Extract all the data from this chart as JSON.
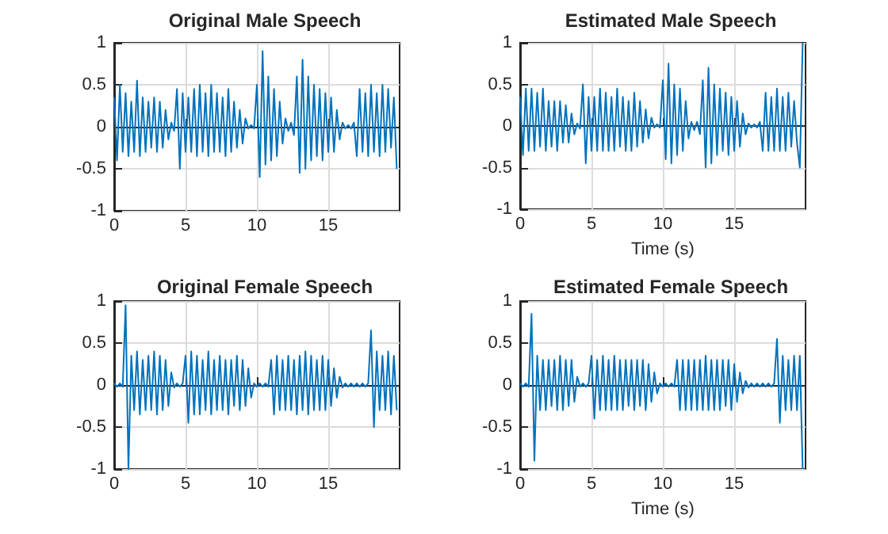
{
  "chart_data": [
    {
      "type": "line",
      "title": "Original Male Speech",
      "color": "#0072bd",
      "xlim": [
        0,
        20
      ],
      "ylim": [
        -1,
        1
      ],
      "xticks": [
        0,
        5,
        10,
        15
      ],
      "yticks": [
        -1,
        -0.5,
        0,
        0.5,
        1
      ],
      "grid": true,
      "x": [
        0,
        0.2,
        0.4,
        0.6,
        0.8,
        1,
        1.2,
        1.4,
        1.6,
        1.8,
        2,
        2.2,
        2.4,
        2.6,
        2.8,
        3,
        3.2,
        3.4,
        3.6,
        3.8,
        4,
        4.2,
        4.4,
        4.6,
        4.8,
        5,
        5.2,
        5.4,
        5.6,
        5.8,
        6,
        6.2,
        6.4,
        6.6,
        6.8,
        7,
        7.2,
        7.4,
        7.6,
        7.8,
        8,
        8.2,
        8.4,
        8.6,
        8.8,
        9,
        9.2,
        9.4,
        9.6,
        9.8,
        10,
        10.2,
        10.4,
        10.6,
        10.8,
        11,
        11.2,
        11.4,
        11.6,
        11.8,
        12,
        12.2,
        12.4,
        12.6,
        12.8,
        13,
        13.2,
        13.4,
        13.6,
        13.8,
        14,
        14.2,
        14.4,
        14.6,
        14.8,
        15,
        15.2,
        15.4,
        15.6,
        15.8,
        16,
        16.2,
        16.4,
        16.6,
        16.8,
        17,
        17.2,
        17.4,
        17.6,
        17.8,
        18,
        18.2,
        18.4,
        18.6,
        18.8,
        19,
        19.2,
        19.4,
        19.6,
        19.8
      ],
      "values": [
        0.35,
        -0.4,
        0.5,
        -0.3,
        0.4,
        -0.35,
        0.3,
        -0.3,
        0.55,
        -0.35,
        0.35,
        -0.3,
        0.3,
        -0.25,
        0.35,
        -0.3,
        0.3,
        -0.25,
        0.2,
        -0.15,
        0.05,
        -0.05,
        0.45,
        -0.5,
        0.4,
        -0.3,
        0.35,
        -0.3,
        0.45,
        -0.35,
        0.5,
        -0.3,
        0.4,
        -0.35,
        0.5,
        -0.3,
        0.4,
        -0.3,
        0.35,
        -0.35,
        0.45,
        -0.3,
        0.3,
        -0.25,
        0.2,
        -0.2,
        0.1,
        -0.02,
        0.02,
        -0.02,
        0.5,
        -0.6,
        0.9,
        -0.45,
        0.6,
        -0.4,
        0.45,
        -0.35,
        0.3,
        -0.2,
        0.1,
        -0.05,
        0.05,
        -0.1,
        0.6,
        -0.55,
        0.8,
        -0.5,
        0.6,
        -0.4,
        0.5,
        -0.35,
        0.45,
        -0.4,
        0.4,
        -0.3,
        0.35,
        -0.3,
        0.2,
        -0.15,
        0.05,
        -0.02,
        0.02,
        -0.02,
        0.05,
        -0.35,
        0.45,
        -0.3,
        0.4,
        -0.35,
        0.5,
        -0.3,
        0.4,
        -0.35,
        0.5,
        -0.3,
        0.45,
        -0.25,
        0.35,
        -0.5
      ]
    },
    {
      "type": "line",
      "title": "Estimated Male Speech",
      "xlabel": "Time (s)",
      "color": "#0072bd",
      "xlim": [
        0,
        20
      ],
      "ylim": [
        -1,
        1
      ],
      "xticks": [
        0,
        5,
        10,
        15
      ],
      "yticks": [
        -1,
        -0.5,
        0,
        0.5,
        1
      ],
      "grid": true,
      "x": [
        0,
        0.2,
        0.4,
        0.6,
        0.8,
        1,
        1.2,
        1.4,
        1.6,
        1.8,
        2,
        2.2,
        2.4,
        2.6,
        2.8,
        3,
        3.2,
        3.4,
        3.6,
        3.8,
        4,
        4.2,
        4.4,
        4.6,
        4.8,
        5,
        5.2,
        5.4,
        5.6,
        5.8,
        6,
        6.2,
        6.4,
        6.6,
        6.8,
        7,
        7.2,
        7.4,
        7.6,
        7.8,
        8,
        8.2,
        8.4,
        8.6,
        8.8,
        9,
        9.2,
        9.4,
        9.6,
        9.8,
        10,
        10.2,
        10.4,
        10.6,
        10.8,
        11,
        11.2,
        11.4,
        11.6,
        11.8,
        12,
        12.2,
        12.4,
        12.6,
        12.8,
        13,
        13.2,
        13.4,
        13.6,
        13.8,
        14,
        14.2,
        14.4,
        14.6,
        14.8,
        15,
        15.2,
        15.4,
        15.6,
        15.8,
        16,
        16.2,
        16.4,
        16.6,
        16.8,
        17,
        17.2,
        17.4,
        17.6,
        17.8,
        18,
        18.2,
        18.4,
        18.6,
        18.8,
        19,
        19.2,
        19.4,
        19.6,
        19.8
      ],
      "values": [
        0.35,
        -0.35,
        0.45,
        -0.3,
        0.45,
        -0.3,
        0.4,
        -0.25,
        0.45,
        -0.3,
        0.3,
        -0.25,
        0.3,
        -0.3,
        0.3,
        -0.2,
        0.25,
        -0.2,
        0.15,
        -0.1,
        0.03,
        -0.03,
        0.5,
        -0.45,
        0.35,
        -0.3,
        0.35,
        -0.3,
        0.45,
        -0.3,
        0.4,
        -0.3,
        0.35,
        -0.3,
        0.45,
        -0.25,
        0.35,
        -0.3,
        0.3,
        -0.3,
        0.4,
        -0.25,
        0.3,
        -0.2,
        0.2,
        -0.15,
        0.1,
        -0.02,
        0.02,
        -0.02,
        0.55,
        -0.4,
        0.75,
        -0.45,
        0.5,
        -0.35,
        0.45,
        -0.3,
        0.3,
        -0.15,
        0.05,
        -0.05,
        0.05,
        -0.1,
        0.55,
        -0.5,
        0.7,
        -0.45,
        0.5,
        -0.35,
        0.45,
        -0.3,
        0.4,
        -0.35,
        0.35,
        -0.3,
        0.3,
        -0.25,
        0.15,
        -0.1,
        0.03,
        -0.02,
        0.02,
        -0.02,
        0.05,
        -0.3,
        0.4,
        -0.3,
        0.35,
        -0.3,
        0.45,
        -0.3,
        0.35,
        -0.3,
        0.4,
        -0.25,
        0.3,
        -0.2,
        -0.5,
        1
      ]
    },
    {
      "type": "line",
      "title": "Original Female Speech",
      "color": "#0072bd",
      "xlim": [
        0,
        20
      ],
      "ylim": [
        -1,
        1
      ],
      "xticks": [
        0,
        5,
        10,
        15
      ],
      "yticks": [
        -1,
        -0.5,
        0,
        0.5,
        1
      ],
      "grid": true,
      "x": [
        0,
        0.2,
        0.4,
        0.6,
        0.8,
        1,
        1.2,
        1.4,
        1.6,
        1.8,
        2,
        2.2,
        2.4,
        2.6,
        2.8,
        3,
        3.2,
        3.4,
        3.6,
        3.8,
        4,
        4.2,
        4.4,
        4.6,
        4.8,
        5,
        5.2,
        5.4,
        5.6,
        5.8,
        6,
        6.2,
        6.4,
        6.6,
        6.8,
        7,
        7.2,
        7.4,
        7.6,
        7.8,
        8,
        8.2,
        8.4,
        8.6,
        8.8,
        9,
        9.2,
        9.4,
        9.6,
        9.8,
        10,
        10.2,
        10.4,
        10.6,
        10.8,
        11,
        11.2,
        11.4,
        11.6,
        11.8,
        12,
        12.2,
        12.4,
        12.6,
        12.8,
        13,
        13.2,
        13.4,
        13.6,
        13.8,
        14,
        14.2,
        14.4,
        14.6,
        14.8,
        15,
        15.2,
        15.4,
        15.6,
        15.8,
        16,
        16.2,
        16.4,
        16.6,
        16.8,
        17,
        17.2,
        17.4,
        17.6,
        17.8,
        18,
        18.2,
        18.4,
        18.6,
        18.8,
        19,
        19.2,
        19.4,
        19.6,
        19.8
      ],
      "values": [
        0.02,
        -0.02,
        0.02,
        -0.02,
        0.95,
        -1,
        0.35,
        -0.3,
        0.4,
        -0.35,
        0.3,
        -0.3,
        0.35,
        -0.3,
        0.4,
        -0.35,
        0.35,
        -0.3,
        0.3,
        -0.25,
        0.15,
        -0.03,
        0.02,
        -0.02,
        0.02,
        0.35,
        -0.45,
        0.4,
        -0.35,
        0.35,
        -0.35,
        0.3,
        -0.3,
        0.4,
        -0.35,
        0.3,
        -0.3,
        0.35,
        -0.3,
        0.3,
        -0.35,
        0.3,
        -0.25,
        0.35,
        -0.3,
        0.3,
        -0.25,
        0.2,
        -0.15,
        0.02,
        -0.02,
        0.02,
        -0.02,
        0.02,
        -0.02,
        0.3,
        -0.35,
        0.35,
        -0.3,
        0.3,
        -0.3,
        0.35,
        -0.3,
        0.3,
        -0.35,
        0.35,
        -0.3,
        0.4,
        -0.35,
        0.35,
        -0.3,
        0.3,
        -0.3,
        0.35,
        -0.3,
        0.3,
        -0.25,
        0.2,
        -0.15,
        0.1,
        -0.03,
        0.02,
        -0.02,
        0.02,
        -0.02,
        0.02,
        -0.02,
        0.02,
        -0.02,
        0.02,
        0.65,
        -0.5,
        0.4,
        -0.3,
        0.35,
        -0.3,
        0.4,
        -0.35,
        0.35,
        -0.3
      ]
    },
    {
      "type": "line",
      "title": "Estimated Female Speech",
      "xlabel": "Time (s)",
      "color": "#0072bd",
      "xlim": [
        0,
        20
      ],
      "ylim": [
        -1,
        1
      ],
      "xticks": [
        0,
        5,
        10,
        15
      ],
      "yticks": [
        -1,
        -0.5,
        0,
        0.5,
        1
      ],
      "grid": true,
      "x": [
        0,
        0.2,
        0.4,
        0.6,
        0.8,
        1,
        1.2,
        1.4,
        1.6,
        1.8,
        2,
        2.2,
        2.4,
        2.6,
        2.8,
        3,
        3.2,
        3.4,
        3.6,
        3.8,
        4,
        4.2,
        4.4,
        4.6,
        4.8,
        5,
        5.2,
        5.4,
        5.6,
        5.8,
        6,
        6.2,
        6.4,
        6.6,
        6.8,
        7,
        7.2,
        7.4,
        7.6,
        7.8,
        8,
        8.2,
        8.4,
        8.6,
        8.8,
        9,
        9.2,
        9.4,
        9.6,
        9.8,
        10,
        10.2,
        10.4,
        10.6,
        10.8,
        11,
        11.2,
        11.4,
        11.6,
        11.8,
        12,
        12.2,
        12.4,
        12.6,
        12.8,
        13,
        13.2,
        13.4,
        13.6,
        13.8,
        14,
        14.2,
        14.4,
        14.6,
        14.8,
        15,
        15.2,
        15.4,
        15.6,
        15.8,
        16,
        16.2,
        16.4,
        16.6,
        16.8,
        17,
        17.2,
        17.4,
        17.6,
        17.8,
        18,
        18.2,
        18.4,
        18.6,
        18.8,
        19,
        19.2,
        19.4,
        19.6,
        19.8
      ],
      "values": [
        0.02,
        -0.02,
        0.02,
        -0.02,
        0.85,
        -0.9,
        0.35,
        -0.3,
        0.3,
        -0.3,
        0.3,
        -0.25,
        0.3,
        -0.3,
        0.35,
        -0.3,
        0.3,
        -0.25,
        0.3,
        -0.2,
        0.1,
        -0.02,
        0.02,
        -0.02,
        0.02,
        0.35,
        -0.4,
        0.3,
        -0.3,
        0.35,
        -0.3,
        0.3,
        -0.3,
        0.35,
        -0.3,
        0.3,
        -0.3,
        0.3,
        -0.25,
        0.3,
        -0.3,
        0.3,
        -0.25,
        0.3,
        -0.3,
        0.25,
        -0.2,
        0.15,
        -0.1,
        0.02,
        -0.02,
        0.02,
        -0.02,
        0.02,
        -0.02,
        0.3,
        -0.3,
        0.3,
        -0.3,
        0.3,
        -0.3,
        0.3,
        -0.3,
        0.3,
        -0.3,
        0.35,
        -0.3,
        0.3,
        -0.3,
        0.3,
        -0.3,
        0.3,
        -0.25,
        0.3,
        -0.3,
        0.25,
        -0.2,
        0.15,
        -0.1,
        0.05,
        -0.03,
        0.02,
        -0.02,
        0.02,
        -0.02,
        0.02,
        -0.02,
        0.02,
        -0.02,
        0.02,
        0.55,
        -0.45,
        0.35,
        -0.3,
        0.3,
        -0.3,
        0.35,
        -0.3,
        0.35,
        -1
      ]
    }
  ]
}
